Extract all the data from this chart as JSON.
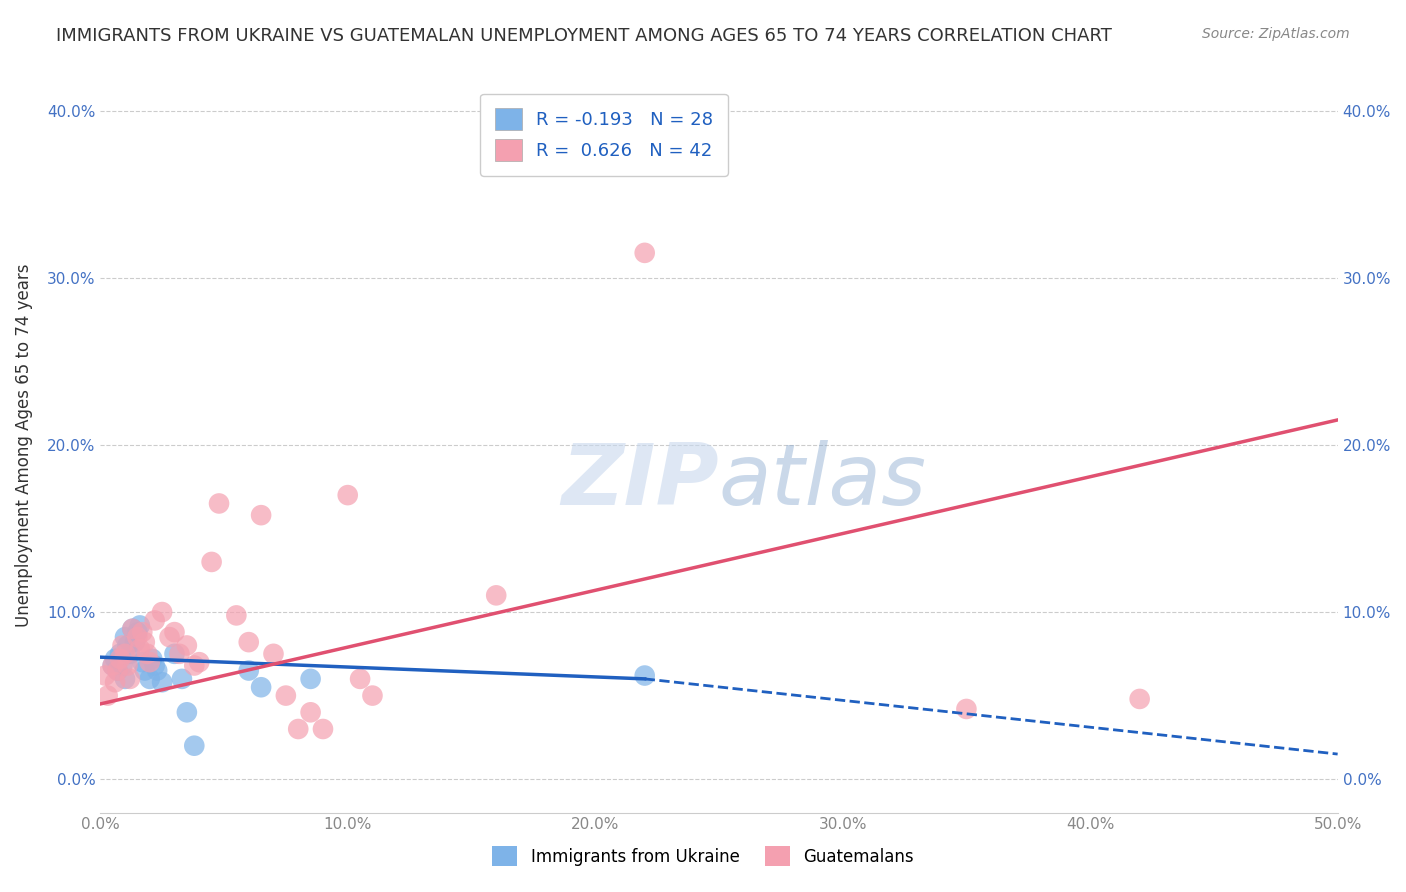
{
  "title": "IMMIGRANTS FROM UKRAINE VS GUATEMALAN UNEMPLOYMENT AMONG AGES 65 TO 74 YEARS CORRELATION CHART",
  "source": "Source: ZipAtlas.com",
  "xlabel": "",
  "ylabel": "Unemployment Among Ages 65 to 74 years",
  "x_min": 0.0,
  "x_max": 0.5,
  "y_min": -0.02,
  "y_max": 0.42,
  "x_ticks": [
    0.0,
    0.1,
    0.2,
    0.3,
    0.4,
    0.5
  ],
  "x_tick_labels": [
    "0.0%",
    "10.0%",
    "20.0%",
    "30.0%",
    "40.0%",
    "50.0%"
  ],
  "y_ticks": [
    0.0,
    0.1,
    0.2,
    0.3,
    0.4
  ],
  "y_tick_labels": [
    "0.0%",
    "10.0%",
    "20.0%",
    "30.0%",
    "40.0%"
  ],
  "blue_color": "#7EB3E8",
  "pink_color": "#F4A0B0",
  "blue_line_color": "#2060C0",
  "pink_line_color": "#E05070",
  "legend_blue_r": "-0.193",
  "legend_blue_n": "28",
  "legend_pink_r": "0.626",
  "legend_pink_n": "42",
  "watermark_zip": "ZIP",
  "watermark_atlas": "atlas",
  "blue_dots": [
    [
      0.005,
      0.068
    ],
    [
      0.006,
      0.072
    ],
    [
      0.007,
      0.065
    ],
    [
      0.008,
      0.075
    ],
    [
      0.009,
      0.068
    ],
    [
      0.01,
      0.06
    ],
    [
      0.01,
      0.085
    ],
    [
      0.011,
      0.08
    ],
    [
      0.012,
      0.075
    ],
    [
      0.013,
      0.09
    ],
    [
      0.014,
      0.082
    ],
    [
      0.015,
      0.088
    ],
    [
      0.016,
      0.092
    ],
    [
      0.017,
      0.07
    ],
    [
      0.018,
      0.065
    ],
    [
      0.02,
      0.06
    ],
    [
      0.021,
      0.072
    ],
    [
      0.022,
      0.068
    ],
    [
      0.023,
      0.065
    ],
    [
      0.025,
      0.058
    ],
    [
      0.03,
      0.075
    ],
    [
      0.033,
      0.06
    ],
    [
      0.035,
      0.04
    ],
    [
      0.038,
      0.02
    ],
    [
      0.06,
      0.065
    ],
    [
      0.065,
      0.055
    ],
    [
      0.085,
      0.06
    ],
    [
      0.22,
      0.062
    ]
  ],
  "pink_dots": [
    [
      0.002,
      0.062
    ],
    [
      0.003,
      0.05
    ],
    [
      0.005,
      0.068
    ],
    [
      0.006,
      0.058
    ],
    [
      0.007,
      0.065
    ],
    [
      0.008,
      0.072
    ],
    [
      0.009,
      0.08
    ],
    [
      0.01,
      0.075
    ],
    [
      0.011,
      0.068
    ],
    [
      0.012,
      0.06
    ],
    [
      0.013,
      0.09
    ],
    [
      0.015,
      0.085
    ],
    [
      0.016,
      0.078
    ],
    [
      0.017,
      0.088
    ],
    [
      0.018,
      0.082
    ],
    [
      0.019,
      0.075
    ],
    [
      0.02,
      0.07
    ],
    [
      0.022,
      0.095
    ],
    [
      0.025,
      0.1
    ],
    [
      0.028,
      0.085
    ],
    [
      0.03,
      0.088
    ],
    [
      0.032,
      0.075
    ],
    [
      0.035,
      0.08
    ],
    [
      0.038,
      0.068
    ],
    [
      0.04,
      0.07
    ],
    [
      0.045,
      0.13
    ],
    [
      0.048,
      0.165
    ],
    [
      0.055,
      0.098
    ],
    [
      0.06,
      0.082
    ],
    [
      0.065,
      0.158
    ],
    [
      0.07,
      0.075
    ],
    [
      0.075,
      0.05
    ],
    [
      0.08,
      0.03
    ],
    [
      0.085,
      0.04
    ],
    [
      0.09,
      0.03
    ],
    [
      0.1,
      0.17
    ],
    [
      0.105,
      0.06
    ],
    [
      0.11,
      0.05
    ],
    [
      0.16,
      0.11
    ],
    [
      0.22,
      0.315
    ],
    [
      0.35,
      0.042
    ],
    [
      0.42,
      0.048
    ]
  ],
  "blue_line": {
    "x0": 0.0,
    "y0": 0.073,
    "x1": 0.22,
    "y1": 0.06
  },
  "blue_dash_line": {
    "x0": 0.22,
    "y0": 0.06,
    "x1": 0.5,
    "y1": 0.015
  },
  "pink_line": {
    "x0": 0.0,
    "y0": 0.045,
    "x1": 0.5,
    "y1": 0.215
  }
}
